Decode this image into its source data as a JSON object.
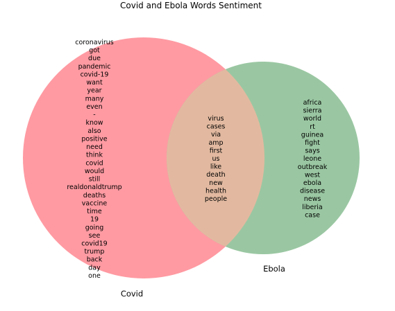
{
  "title": "Covid and Ebola Words Sentiment",
  "sets": {
    "left": {
      "label": "Covid",
      "color": "#ff9aa2",
      "edge": "#ff9aa2"
    },
    "right": {
      "label": "Ebola",
      "color": "#9ac7a2",
      "edge": "#9ac7a2"
    },
    "overlap": {
      "color": "#e2b9a0"
    }
  },
  "words": {
    "left_only": [
      "coronavirus",
      "got",
      "due",
      "pandemic",
      "covid-19",
      "want",
      "year",
      "many",
      "even",
      "-",
      "know",
      "also",
      "positive",
      "need",
      "think",
      "covid",
      "would",
      "still",
      "realdonaldtrump",
      "deaths",
      "vaccine",
      "time",
      "19",
      "going",
      "see",
      "covid19",
      "trump",
      "back",
      "day",
      "one"
    ],
    "overlap": [
      "virus",
      "cases",
      "via",
      "amp",
      "first",
      "us",
      "like",
      "death",
      "new",
      "health",
      "people"
    ],
    "right_only": [
      "africa",
      "sierra",
      "world",
      "rt",
      "guinea",
      "fight",
      "says",
      "leone",
      "outbreak",
      "west",
      "ebola",
      "disease",
      "news",
      "liberia",
      "case"
    ]
  }
}
